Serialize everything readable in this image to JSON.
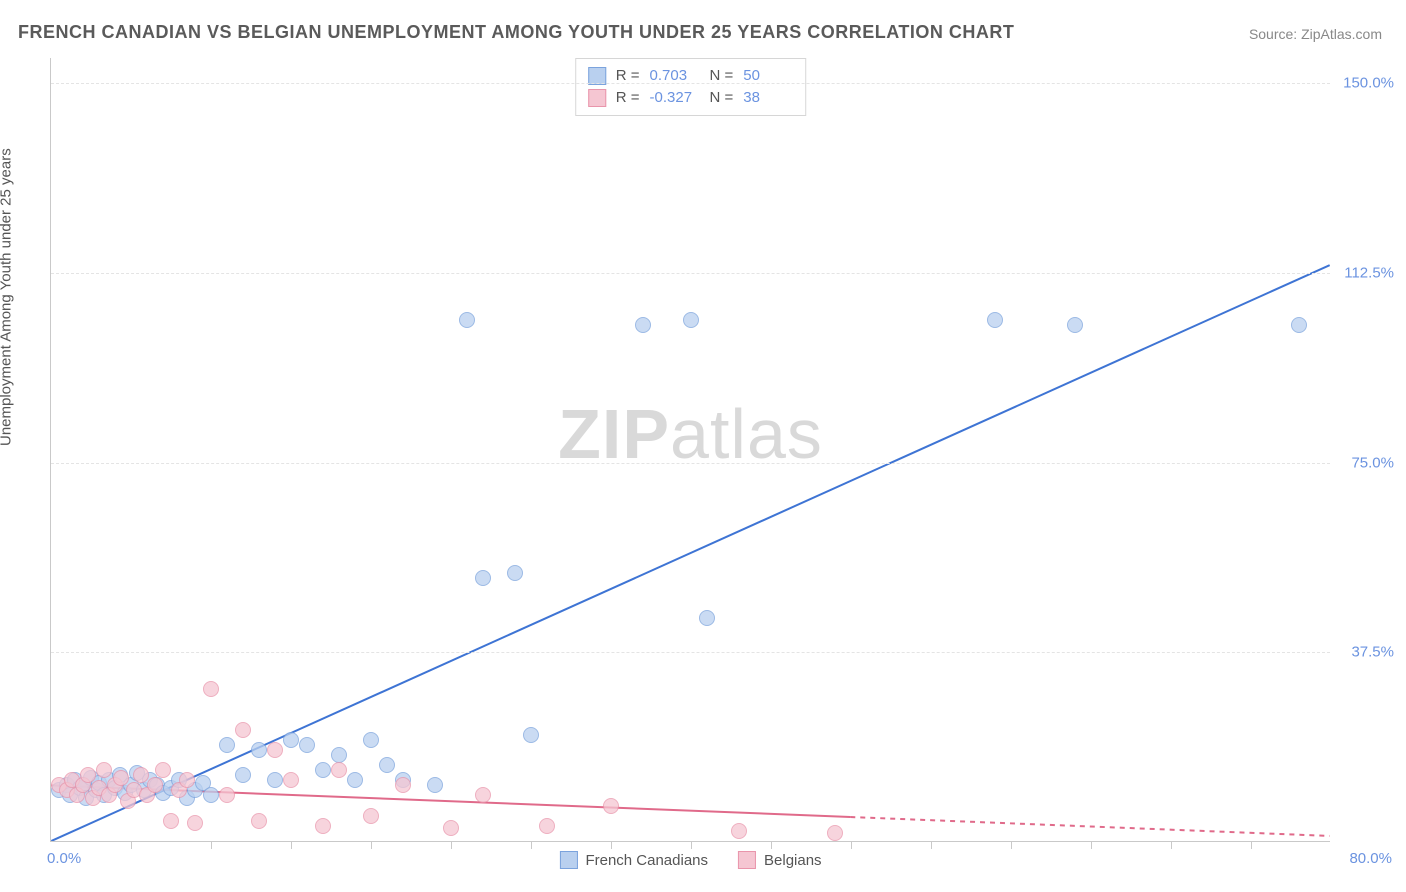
{
  "title": "FRENCH CANADIAN VS BELGIAN UNEMPLOYMENT AMONG YOUTH UNDER 25 YEARS CORRELATION CHART",
  "source": "Source: ZipAtlas.com",
  "ylabel": "Unemployment Among Youth under 25 years",
  "watermark_a": "ZIP",
  "watermark_b": "atlas",
  "chart": {
    "type": "scatter-with-regression",
    "background_color": "#ffffff",
    "grid_color": "#e4e4e4",
    "axis_color": "#c9c9c9",
    "tick_text_color": "#6b93e0",
    "label_text_color": "#555555",
    "title_fontsize": 18,
    "label_fontsize": 15,
    "xlim": [
      0,
      80
    ],
    "ylim": [
      0,
      155
    ],
    "xtick_min": "0.0%",
    "xtick_max": "80.0%",
    "x_minor_step": 5,
    "yticks": [
      37.5,
      75.0,
      112.5,
      150.0
    ],
    "ytick_labels": [
      "37.5%",
      "75.0%",
      "112.5%",
      "150.0%"
    ],
    "series": [
      {
        "name": "French Canadians",
        "fill_color": "#b9d0ef",
        "stroke_color": "#7ba3dd",
        "line_color": "#3e74d4",
        "marker_radius": 8,
        "marker_opacity": 0.75,
        "regression": {
          "x1": 0,
          "y1": 0,
          "x2": 80,
          "y2": 114,
          "dash_from_x": null
        },
        "stats": {
          "R": "0.703",
          "N": "50"
        },
        "points": [
          [
            0.5,
            10
          ],
          [
            1,
            11
          ],
          [
            1.2,
            9
          ],
          [
            1.5,
            12
          ],
          [
            1.8,
            10.5
          ],
          [
            2,
            11
          ],
          [
            2.2,
            8.5
          ],
          [
            2.5,
            12.5
          ],
          [
            2.8,
            10
          ],
          [
            3,
            11.5
          ],
          [
            3.3,
            9
          ],
          [
            3.6,
            12
          ],
          [
            4,
            10.5
          ],
          [
            4.3,
            13
          ],
          [
            4.6,
            9.5
          ],
          [
            5,
            11
          ],
          [
            5.4,
            13.5
          ],
          [
            5.8,
            10
          ],
          [
            6.2,
            12
          ],
          [
            6.6,
            11
          ],
          [
            7,
            9.5
          ],
          [
            7.5,
            10.5
          ],
          [
            8,
            12
          ],
          [
            8.5,
            8.5
          ],
          [
            9,
            10
          ],
          [
            9.5,
            11.5
          ],
          [
            10,
            9
          ],
          [
            11,
            19
          ],
          [
            12,
            13
          ],
          [
            13,
            18
          ],
          [
            14,
            12
          ],
          [
            15,
            20
          ],
          [
            16,
            19
          ],
          [
            17,
            14
          ],
          [
            18,
            17
          ],
          [
            19,
            12
          ],
          [
            20,
            20
          ],
          [
            21,
            15
          ],
          [
            22,
            12
          ],
          [
            24,
            11
          ],
          [
            26,
            103
          ],
          [
            27,
            52
          ],
          [
            29,
            53
          ],
          [
            30,
            21
          ],
          [
            37,
            102
          ],
          [
            40,
            103
          ],
          [
            41,
            44
          ],
          [
            59,
            103
          ],
          [
            64,
            102
          ],
          [
            78,
            102
          ]
        ]
      },
      {
        "name": "Belgians",
        "fill_color": "#f5c6d2",
        "stroke_color": "#e995ab",
        "line_color": "#e06a8a",
        "marker_radius": 8,
        "marker_opacity": 0.75,
        "regression": {
          "x1": 0,
          "y1": 11,
          "x2": 80,
          "y2": 1,
          "dash_from_x": 50
        },
        "stats": {
          "R": "-0.327",
          "N": "38"
        },
        "points": [
          [
            0.5,
            11
          ],
          [
            1,
            10
          ],
          [
            1.3,
            12
          ],
          [
            1.6,
            9
          ],
          [
            2,
            11
          ],
          [
            2.3,
            13
          ],
          [
            2.6,
            8.5
          ],
          [
            3,
            10.5
          ],
          [
            3.3,
            14
          ],
          [
            3.6,
            9
          ],
          [
            4,
            11
          ],
          [
            4.4,
            12.5
          ],
          [
            4.8,
            8
          ],
          [
            5.2,
            10
          ],
          [
            5.6,
            13
          ],
          [
            6,
            9
          ],
          [
            6.5,
            11
          ],
          [
            7,
            14
          ],
          [
            7.5,
            4
          ],
          [
            8,
            10
          ],
          [
            8.5,
            12
          ],
          [
            9,
            3.5
          ],
          [
            10,
            30
          ],
          [
            11,
            9
          ],
          [
            12,
            22
          ],
          [
            13,
            4
          ],
          [
            14,
            18
          ],
          [
            15,
            12
          ],
          [
            17,
            3
          ],
          [
            18,
            14
          ],
          [
            20,
            5
          ],
          [
            22,
            11
          ],
          [
            25,
            2.5
          ],
          [
            27,
            9
          ],
          [
            31,
            3
          ],
          [
            35,
            7
          ],
          [
            43,
            2
          ],
          [
            49,
            1.5
          ]
        ]
      }
    ],
    "legend": [
      {
        "label": "French Canadians",
        "fill": "#b9d0ef",
        "stroke": "#7ba3dd"
      },
      {
        "label": "Belgians",
        "fill": "#f5c6d2",
        "stroke": "#e995ab"
      }
    ]
  }
}
